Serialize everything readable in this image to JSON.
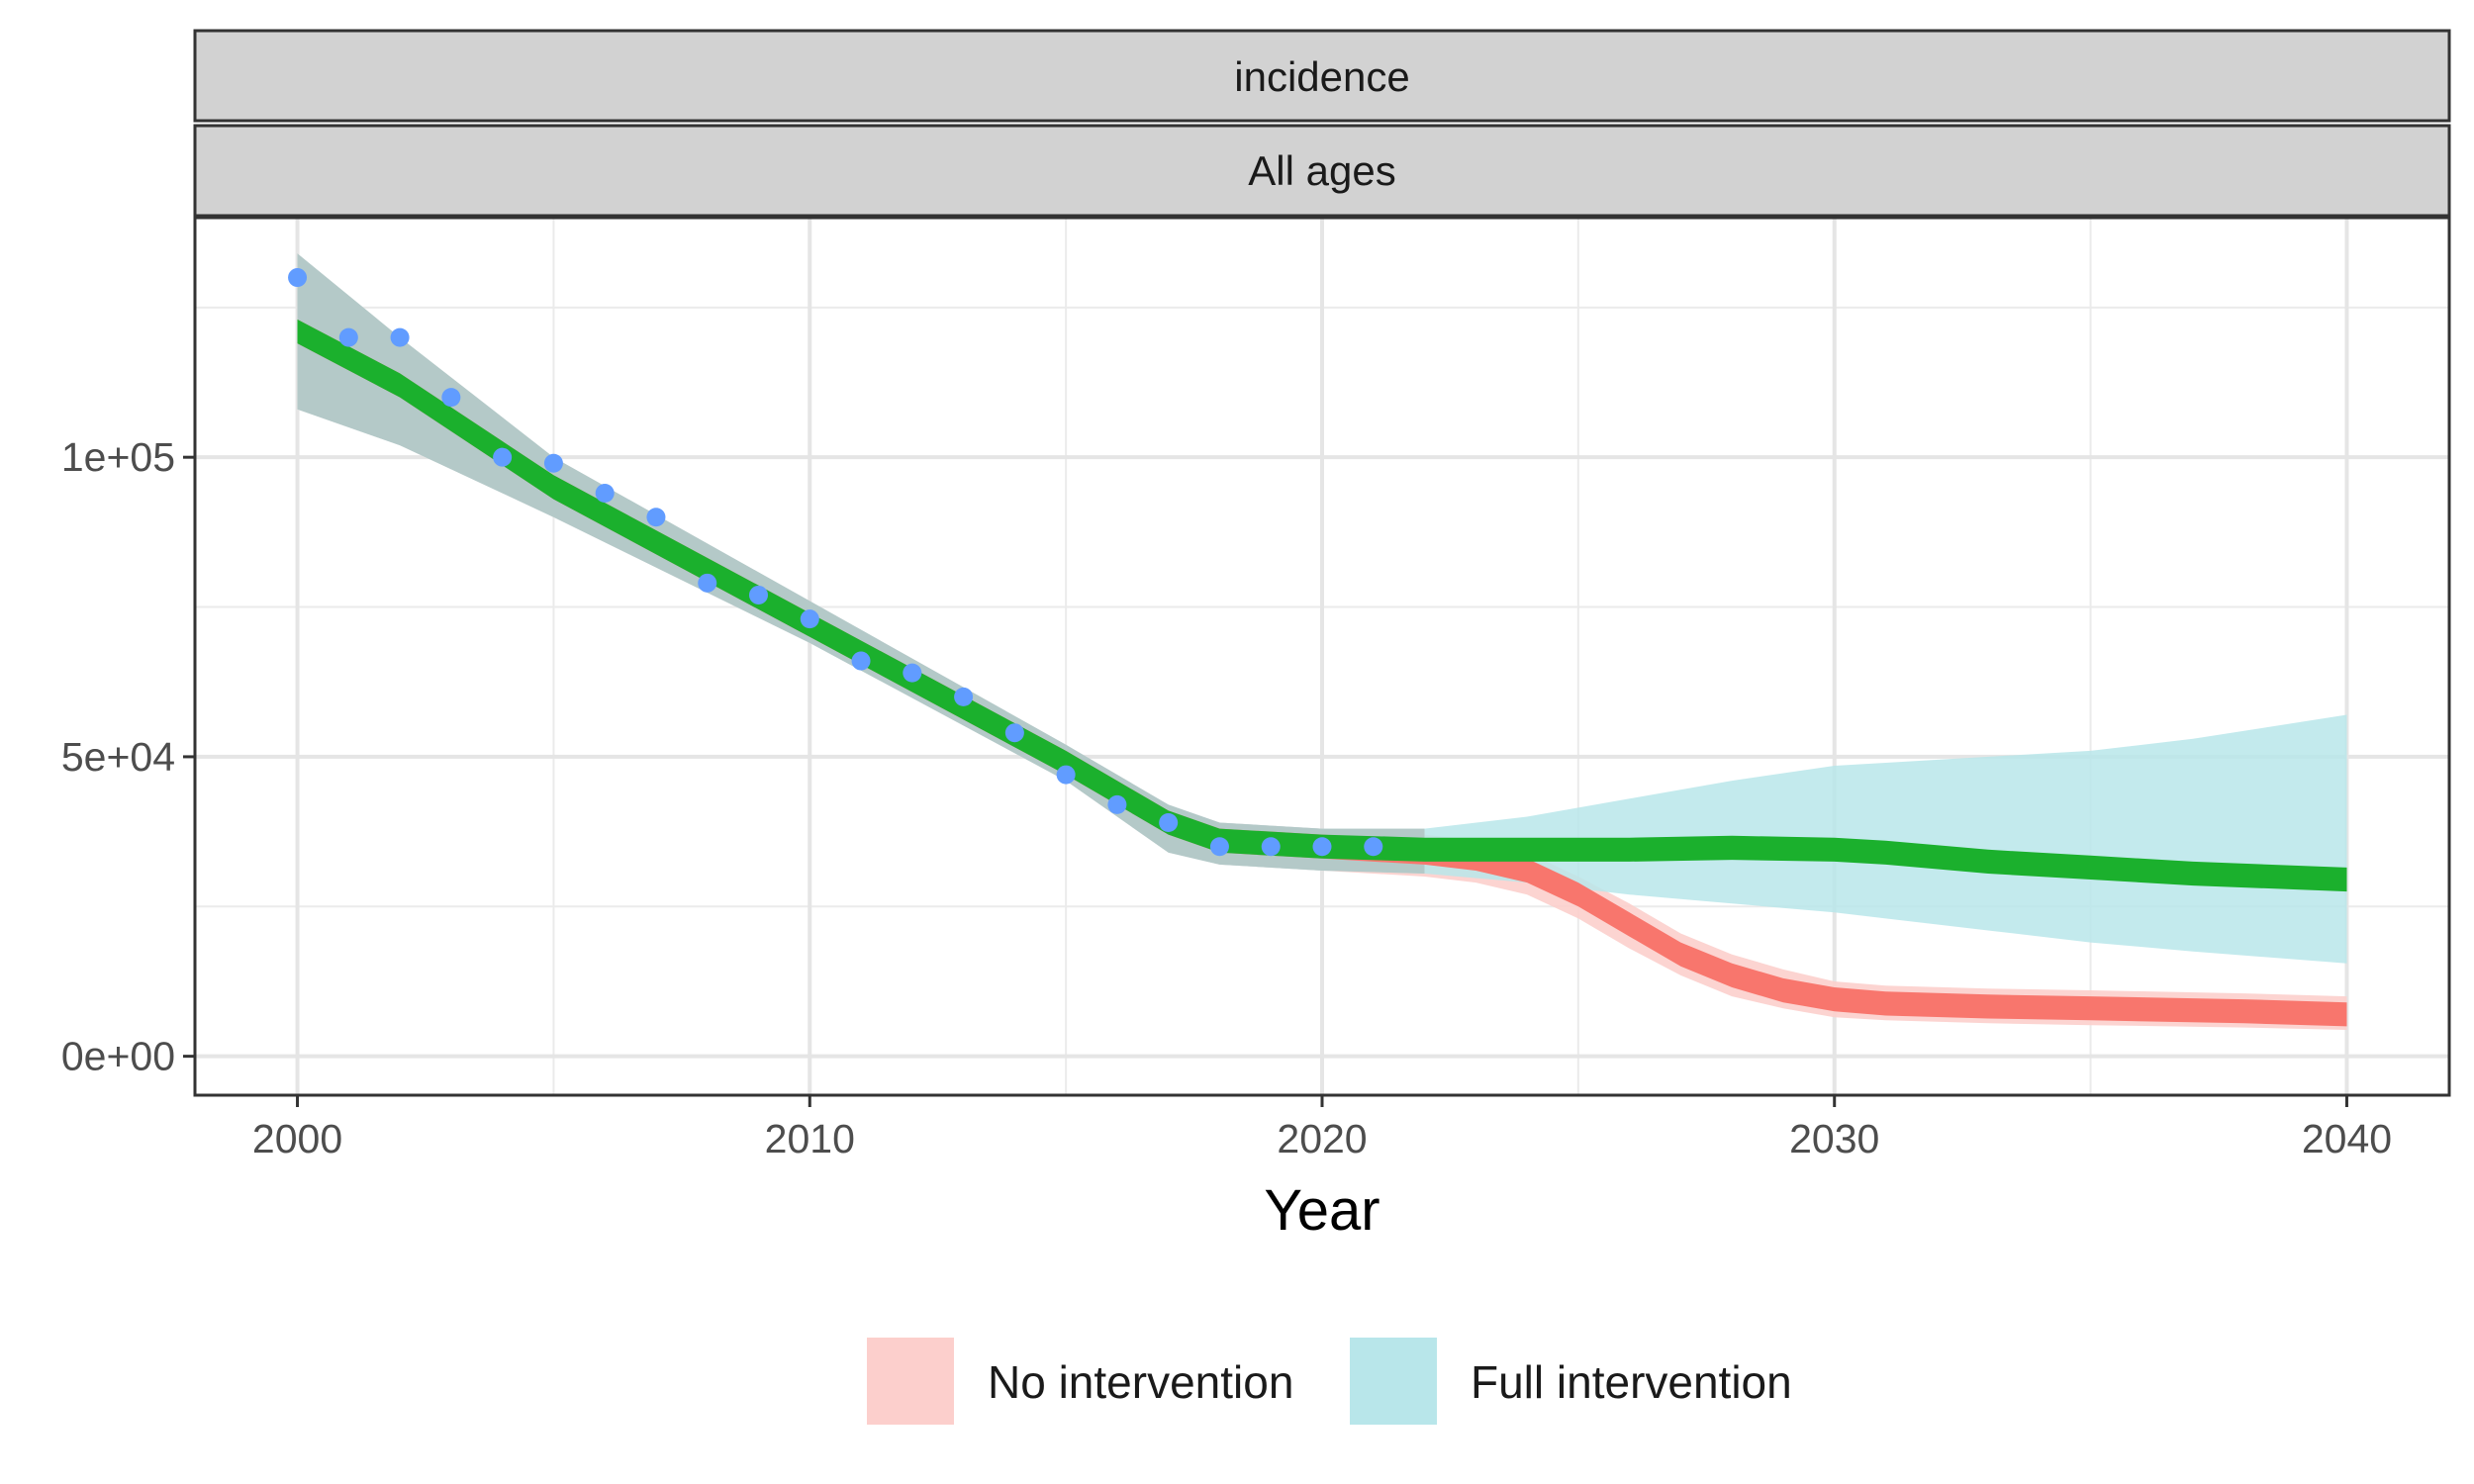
{
  "chart_data": {
    "type": "line",
    "facet_strips": [
      "incidence",
      "All ages"
    ],
    "xlabel": "Year",
    "ylabel": "",
    "xlim": [
      1998,
      2042
    ],
    "ylim": [
      -6500,
      140000
    ],
    "x_ticks": [
      2000,
      2010,
      2020,
      2030,
      2040
    ],
    "x_tick_labels": [
      "2000",
      "2010",
      "2020",
      "2030",
      "2040"
    ],
    "y_ticks": [
      0,
      50000,
      100000
    ],
    "y_tick_labels": [
      "0e+00",
      "5e+04",
      "1e+05"
    ],
    "grid": true,
    "legend_position": "bottom",
    "legend": [
      {
        "label": "No intervention",
        "color": "#F8766D"
      },
      {
        "label": "Full intervention",
        "color": "#00BFC4"
      }
    ],
    "colors": {
      "no_intervention_line": "#F8766D",
      "no_intervention_fill": "#FCCFCC",
      "full_intervention_line": "#1BB02D",
      "full_intervention_fill": "#B8E6EA",
      "historical_ribbon": "#B3C7C6",
      "observed_points": "#619CFF"
    },
    "series": [
      {
        "name": "No intervention",
        "x": [
          2000,
          2002,
          2005,
          2010,
          2015,
          2017,
          2018,
          2020,
          2022,
          2023,
          2024,
          2025,
          2026,
          2027,
          2028,
          2029,
          2030,
          2031,
          2033,
          2035,
          2038,
          2040
        ],
        "y_lower": [
          119000,
          110000,
          93000,
          70000,
          47000,
          37000,
          34000,
          33000,
          32000,
          31000,
          29000,
          25000,
          20000,
          15000,
          11500,
          9000,
          7500,
          6800,
          6300,
          6000,
          5500,
          5000
        ],
        "y_upper": [
          123000,
          114000,
          97000,
          74000,
          51000,
          41000,
          38000,
          37000,
          36000,
          35000,
          33000,
          29000,
          24000,
          19000,
          15500,
          13000,
          11500,
          10800,
          10300,
          10000,
          9500,
          9000
        ],
        "band_lower": [
          108000,
          102000,
          90000,
          69000,
          46000,
          34000,
          32000,
          31000,
          30000,
          29000,
          27000,
          23000,
          18000,
          13500,
          10000,
          8000,
          6500,
          6000,
          5500,
          5200,
          4800,
          4400
        ],
        "band_upper": [
          134000,
          120000,
          100000,
          76000,
          52000,
          42000,
          39000,
          38000,
          37000,
          36000,
          34000,
          30000,
          25500,
          20500,
          17000,
          14500,
          12500,
          11800,
          11300,
          11000,
          10500,
          10000
        ]
      },
      {
        "name": "Full intervention",
        "x": [
          2000,
          2002,
          2005,
          2010,
          2015,
          2017,
          2018,
          2020,
          2022,
          2024,
          2026,
          2028,
          2030,
          2031,
          2033,
          2035,
          2037,
          2040
        ],
        "y_lower": [
          119000,
          110000,
          93000,
          70000,
          47000,
          37000,
          34000,
          33000,
          32500,
          32500,
          32500,
          32800,
          32500,
          32000,
          30500,
          29500,
          28500,
          27500
        ],
        "y_upper": [
          123000,
          114000,
          97000,
          74000,
          51000,
          41000,
          38000,
          37000,
          36500,
          36500,
          36500,
          36800,
          36500,
          36000,
          34500,
          33500,
          32500,
          31500
        ],
        "band_lower": [
          108000,
          102000,
          90000,
          69000,
          46000,
          34000,
          32000,
          31000,
          30500,
          29000,
          27000,
          25500,
          24000,
          23000,
          21000,
          19000,
          17500,
          15500
        ],
        "band_upper": [
          134000,
          120000,
          100000,
          76000,
          52000,
          42000,
          39000,
          38000,
          38000,
          40000,
          43000,
          46000,
          48500,
          49000,
          50000,
          51000,
          53000,
          57000
        ]
      }
    ],
    "observed": {
      "x": [
        2000,
        2001,
        2002,
        2003,
        2004,
        2005,
        2006,
        2007,
        2008,
        2009,
        2010,
        2011,
        2012,
        2013,
        2014,
        2015,
        2016,
        2017,
        2018,
        2019,
        2020,
        2021
      ],
      "y": [
        130000,
        120000,
        120000,
        110000,
        100000,
        99000,
        94000,
        90000,
        79000,
        77000,
        73000,
        66000,
        64000,
        60000,
        54000,
        47000,
        42000,
        39000,
        35000,
        35000,
        35000,
        35000
      ]
    }
  }
}
